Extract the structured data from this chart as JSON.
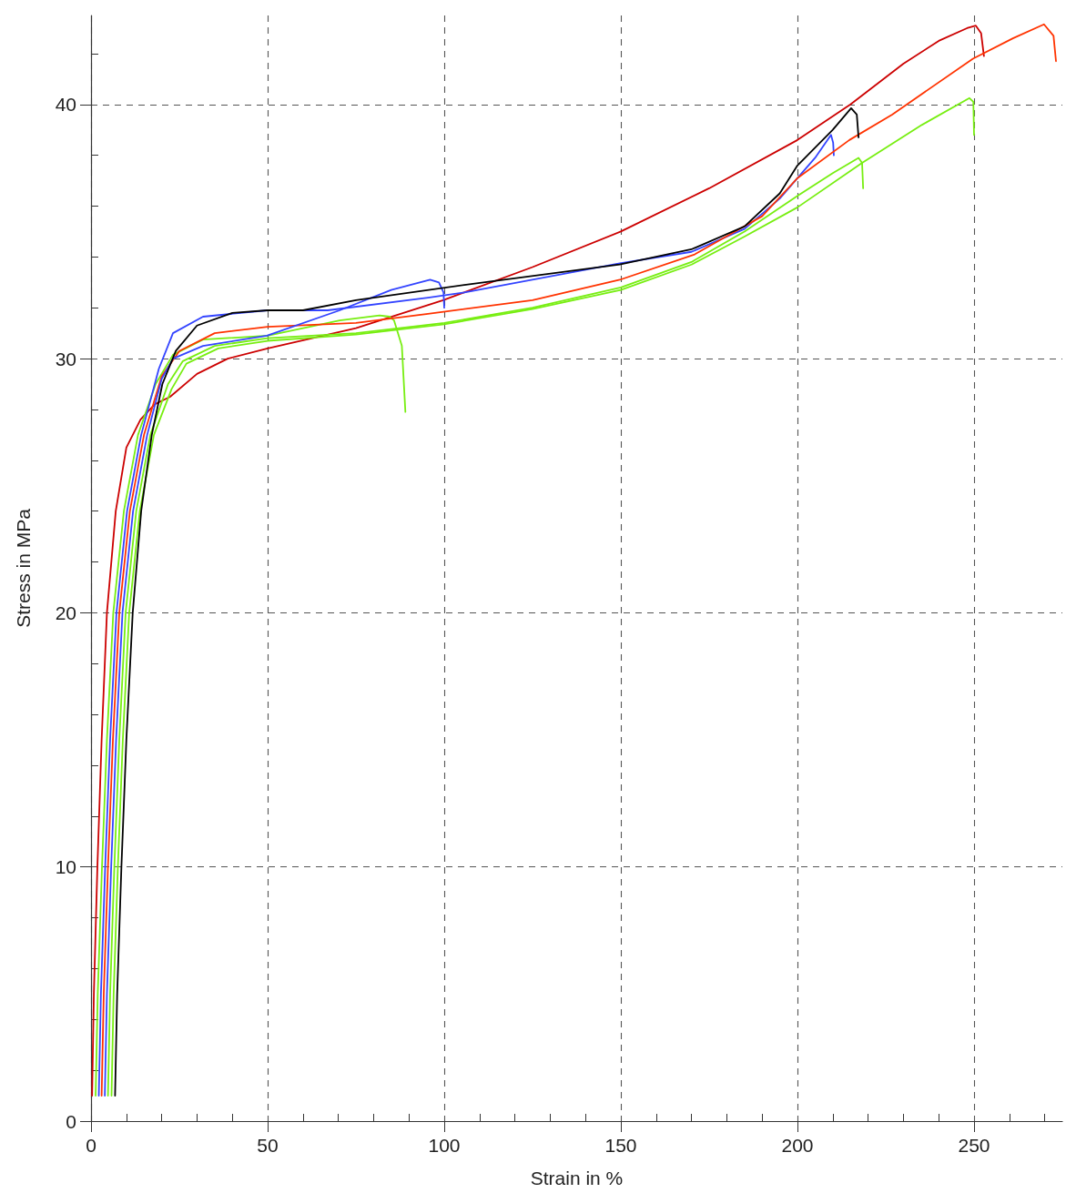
{
  "chart_data": {
    "type": "line",
    "xlabel": "Strain in %",
    "ylabel": "Stress in MPa",
    "xlim": [
      0,
      275
    ],
    "ylim": [
      0,
      43.5
    ],
    "xticks": [
      0,
      {
        "value": 10,
        "label": null
      },
      {
        "value": 20,
        "label": null
      },
      {
        "value": 30,
        "label": null
      },
      {
        "value": 40,
        "label": null
      },
      50,
      {
        "value": 60,
        "label": null
      },
      {
        "value": 70,
        "label": null
      },
      {
        "value": 80,
        "label": null
      },
      {
        "value": 90,
        "label": null
      },
      100,
      {
        "value": 110,
        "label": null
      },
      {
        "value": 120,
        "label": null
      },
      {
        "value": 130,
        "label": null
      },
      {
        "value": 140,
        "label": null
      },
      150,
      {
        "value": 160,
        "label": null
      },
      {
        "value": 170,
        "label": null
      },
      {
        "value": 180,
        "label": null
      },
      {
        "value": 190,
        "label": null
      },
      200,
      {
        "value": 210,
        "label": null
      },
      {
        "value": 220,
        "label": null
      },
      {
        "value": 230,
        "label": null
      },
      {
        "value": 240,
        "label": null
      },
      250,
      {
        "value": 260,
        "label": null
      },
      {
        "value": 270,
        "label": null
      }
    ],
    "yticks": [
      0,
      {
        "value": 2,
        "label": null
      },
      {
        "value": 4,
        "label": null
      },
      {
        "value": 6,
        "label": null
      },
      {
        "value": 8,
        "label": null
      },
      10,
      {
        "value": 12,
        "label": null
      },
      {
        "value": 14,
        "label": null
      },
      {
        "value": 16,
        "label": null
      },
      {
        "value": 18,
        "label": null
      },
      20,
      {
        "value": 22,
        "label": null
      },
      {
        "value": 24,
        "label": null
      },
      {
        "value": 26,
        "label": null
      },
      {
        "value": 28,
        "label": null
      },
      30,
      {
        "value": 32,
        "label": null
      },
      {
        "value": 34,
        "label": null
      },
      {
        "value": 36,
        "label": null
      },
      {
        "value": 38,
        "label": null
      },
      40,
      {
        "value": 42,
        "label": null
      }
    ],
    "grid": true,
    "marker": "none",
    "line_style": "solid",
    "series": [
      {
        "color": "#cc0000",
        "x": [
          0.3,
          0.8,
          1.8,
          3,
          4.5,
          7,
          10,
          14,
          18,
          22.4,
          30,
          38.7,
          50,
          75,
          99.7,
          125,
          150,
          175,
          200,
          215,
          230,
          240,
          248,
          250.5,
          252,
          252.8
        ],
        "values": [
          1,
          5,
          10,
          15,
          20,
          24,
          26.5,
          27.6,
          28.2,
          28.5,
          29.4,
          30.0,
          30.4,
          31.2,
          32.3,
          33.6,
          35.0,
          36.7,
          38.6,
          40.0,
          41.6,
          42.5,
          43.0,
          43.1,
          42.8,
          41.9
        ]
      },
      {
        "color": "#77ee11",
        "x": [
          1.3,
          1.9,
          3.1,
          4.5,
          6.3,
          9.3,
          13.3,
          18.3,
          23.2,
          31.7,
          50,
          70.4,
          81.7,
          84.5,
          85.8,
          88,
          89
        ],
        "values": [
          1,
          5,
          10,
          15,
          20,
          24,
          27,
          29,
          30.15,
          30.75,
          30.9,
          31.5,
          31.7,
          31.65,
          31.5,
          30.5,
          27.9
        ]
      },
      {
        "color": "#3344ff",
        "x": [
          2.2,
          2.8,
          4,
          5.4,
          7.2,
          10.2,
          14.2,
          19.2,
          23.2,
          31.7,
          50,
          67,
          95.4,
          105.7,
          149.7,
          170,
          185,
          195,
          205,
          209.5,
          210.1,
          210.3
        ],
        "values": [
          1,
          5,
          10,
          15,
          20,
          24,
          27,
          29.6,
          31.0,
          31.65,
          31.9,
          31.9,
          32.4,
          32.6,
          33.75,
          34.2,
          35.1,
          36.3,
          37.9,
          38.8,
          38.5,
          38.0
        ]
      },
      {
        "color": "#ff3300",
        "x": [
          3,
          3.6,
          4.8,
          6.2,
          8,
          11,
          15,
          20,
          25,
          35,
          50,
          75,
          95.4,
          125,
          149.7,
          170.9,
          190,
          200,
          214.7,
          226.8,
          249.7,
          261,
          269.8,
          272.5,
          273.2
        ],
        "values": [
          1,
          5,
          10,
          15,
          20,
          24,
          27,
          29.3,
          30.3,
          31.0,
          31.25,
          31.4,
          31.76,
          32.3,
          33.1,
          34.1,
          35.6,
          37.1,
          38.6,
          39.6,
          41.8,
          42.6,
          43.15,
          42.7,
          41.7
        ]
      },
      {
        "color": "#3344ff",
        "x": [
          3.9,
          4.5,
          5.7,
          7.1,
          8.9,
          11.9,
          15.9,
          20,
          23.2,
          31.7,
          49.8,
          70.4,
          85,
          96,
          98.5,
          99.8,
          100
        ],
        "values": [
          1,
          5,
          10,
          15,
          20,
          24,
          27,
          29.2,
          30.0,
          30.5,
          30.9,
          31.9,
          32.7,
          33.1,
          33.0,
          32.6,
          32.0
        ]
      },
      {
        "color": "#77ee11",
        "x": [
          4.8,
          5.4,
          6.6,
          8,
          9.8,
          12.8,
          16.8,
          21.8,
          26,
          35,
          50,
          75,
          100,
          125,
          150,
          170,
          185,
          200,
          210,
          217.3,
          218.3,
          218.6
        ],
        "values": [
          1,
          5,
          10,
          15,
          20,
          24,
          27,
          29,
          29.9,
          30.5,
          30.8,
          31.0,
          31.4,
          32.0,
          32.8,
          33.8,
          35.0,
          36.4,
          37.3,
          37.9,
          37.7,
          36.7
        ]
      },
      {
        "color": "#77ee11",
        "x": [
          5.8,
          6.4,
          7.6,
          9,
          10.8,
          13.8,
          17.8,
          22.8,
          27,
          36,
          50,
          75,
          100,
          125,
          150,
          170,
          185,
          200,
          218.3,
          235.3,
          248.7,
          249.8,
          250
        ],
        "values": [
          1,
          5,
          10,
          15,
          20,
          24,
          27,
          28.8,
          29.8,
          30.4,
          30.7,
          30.95,
          31.35,
          31.95,
          32.7,
          33.7,
          34.8,
          35.95,
          37.7,
          39.2,
          40.25,
          40.1,
          38.8
        ]
      },
      {
        "color": "#000000",
        "x": [
          6.8,
          7.4,
          8.6,
          10,
          11.8,
          14.2,
          17.2,
          20.2,
          24,
          30,
          40,
          50,
          60,
          75,
          105.7,
          149.7,
          170,
          185,
          195,
          200,
          210,
          215.2,
          216.8,
          217.3
        ],
        "values": [
          1,
          5,
          10,
          15,
          20,
          24,
          27,
          29,
          30.3,
          31.3,
          31.8,
          31.9,
          31.9,
          32.3,
          32.9,
          33.7,
          34.3,
          35.2,
          36.5,
          37.6,
          39.0,
          39.85,
          39.6,
          38.7
        ]
      }
    ]
  }
}
